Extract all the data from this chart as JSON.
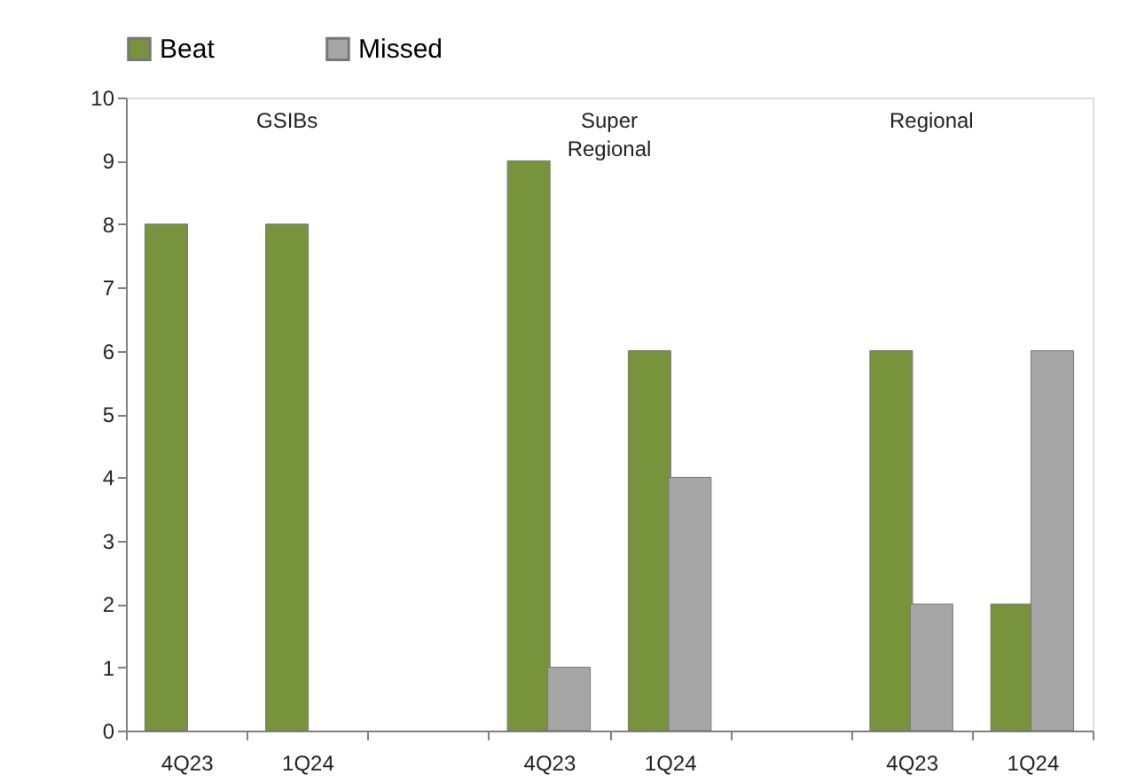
{
  "chart_data": {
    "type": "bar",
    "categories": [
      "4Q23",
      "1Q24",
      null,
      "4Q23",
      "1Q24",
      null,
      "4Q23",
      "1Q24"
    ],
    "series": [
      {
        "name": "Beat",
        "color": "#77933c",
        "values": [
          8,
          8,
          null,
          9,
          6,
          null,
          6,
          2
        ]
      },
      {
        "name": "Missed",
        "color": "#a6a6a6",
        "values": [
          null,
          null,
          null,
          1,
          4,
          null,
          2,
          6
        ]
      }
    ],
    "annotations": [
      "GSIBs",
      "Super\nRegional",
      "Regional"
    ],
    "ylim": [
      0,
      10
    ],
    "yticks": [
      0,
      1,
      2,
      3,
      4,
      5,
      6,
      7,
      8,
      9,
      10
    ],
    "grid": false,
    "legend": "top"
  }
}
